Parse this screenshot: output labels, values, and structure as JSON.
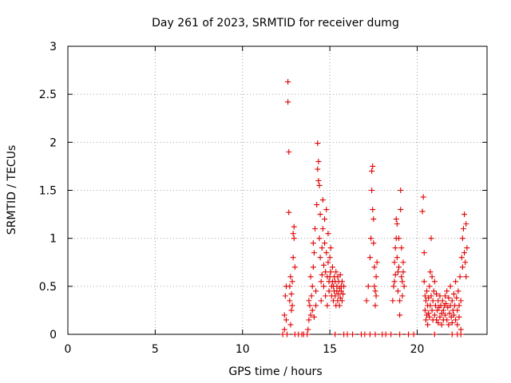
{
  "chart_data": {
    "type": "scatter",
    "title": "Day 261 of 2023, SRMTID for receiver dumg",
    "xlabel": "GPS time / hours",
    "ylabel": "SRMTID / TECUs",
    "xlim": [
      0,
      24
    ],
    "ylim": [
      0,
      3
    ],
    "xticks": [
      {
        "value": 0,
        "label": "0"
      },
      {
        "value": 5,
        "label": "5"
      },
      {
        "value": 10,
        "label": "10"
      },
      {
        "value": 15,
        "label": "15"
      },
      {
        "value": 20,
        "label": "20"
      }
    ],
    "yticks": [
      {
        "value": 0,
        "label": "0"
      },
      {
        "value": 0.5,
        "label": "0.5"
      },
      {
        "value": 1,
        "label": "1"
      },
      {
        "value": 1.5,
        "label": "1.5"
      },
      {
        "value": 2,
        "label": "2"
      },
      {
        "value": 2.5,
        "label": "2.5"
      },
      {
        "value": 3,
        "label": "3"
      }
    ],
    "grid": true,
    "marker": "+",
    "series": [
      {
        "name": "SRMTID",
        "color": "#e00000",
        "points": [
          [
            12.3,
            0.0
          ],
          [
            12.4,
            0.05
          ],
          [
            12.4,
            0.2
          ],
          [
            12.45,
            0.4
          ],
          [
            12.5,
            0.5
          ],
          [
            12.5,
            0.15
          ],
          [
            12.55,
            0.0
          ],
          [
            12.6,
            2.63
          ],
          [
            12.6,
            2.42
          ],
          [
            12.65,
            1.9
          ],
          [
            12.65,
            1.27
          ],
          [
            12.7,
            0.5
          ],
          [
            12.7,
            0.35
          ],
          [
            12.75,
            0.6
          ],
          [
            12.8,
            0.42
          ],
          [
            12.8,
            0.25
          ],
          [
            12.85,
            0.55
          ],
          [
            12.9,
            0.8
          ],
          [
            12.9,
            1.05
          ],
          [
            12.95,
            1.0
          ],
          [
            12.95,
            1.12
          ],
          [
            13.0,
            0.7
          ],
          [
            12.75,
            0.1
          ],
          [
            12.85,
            0.3
          ],
          [
            13.0,
            0.0
          ],
          [
            13.2,
            0.0
          ],
          [
            13.4,
            0.0
          ],
          [
            13.5,
            0.0
          ],
          [
            13.7,
            0.0
          ],
          [
            13.75,
            0.05
          ],
          [
            13.8,
            0.35
          ],
          [
            13.8,
            0.15
          ],
          [
            13.85,
            0.3
          ],
          [
            13.9,
            0.6
          ],
          [
            13.9,
            0.2
          ],
          [
            13.95,
            0.4
          ],
          [
            14.0,
            0.25
          ],
          [
            14.0,
            0.5
          ],
          [
            14.05,
            0.7
          ],
          [
            14.05,
            0.95
          ],
          [
            14.1,
            0.18
          ],
          [
            14.1,
            0.85
          ],
          [
            14.15,
            1.1
          ],
          [
            14.2,
            0.45
          ],
          [
            14.2,
            0.3
          ],
          [
            14.25,
            1.35
          ],
          [
            14.3,
            1.99
          ],
          [
            14.3,
            1.72
          ],
          [
            14.35,
            1.8
          ],
          [
            14.35,
            1.6
          ],
          [
            14.4,
            1.55
          ],
          [
            14.4,
            1.0
          ],
          [
            14.45,
            1.25
          ],
          [
            14.45,
            0.8
          ],
          [
            14.5,
            0.55
          ],
          [
            14.5,
            0.35
          ],
          [
            14.55,
            0.9
          ],
          [
            14.55,
            0.62
          ],
          [
            14.6,
            1.4
          ],
          [
            14.6,
            1.1
          ],
          [
            14.65,
            0.72
          ],
          [
            14.65,
            0.5
          ],
          [
            14.7,
            1.2
          ],
          [
            14.7,
            0.95
          ],
          [
            14.75,
            0.65
          ],
          [
            14.75,
            0.4
          ],
          [
            14.8,
            1.3
          ],
          [
            14.8,
            0.85
          ],
          [
            14.85,
            0.6
          ],
          [
            14.85,
            0.3
          ],
          [
            14.9,
            1.05
          ],
          [
            14.9,
            0.75
          ],
          [
            14.95,
            0.55
          ],
          [
            14.95,
            0.45
          ],
          [
            15.0,
            0.8
          ],
          [
            15.0,
            0.6
          ],
          [
            15.05,
            0.9
          ],
          [
            15.05,
            0.65
          ],
          [
            15.1,
            0.5
          ],
          [
            15.1,
            0.4
          ],
          [
            15.15,
            0.7
          ],
          [
            15.15,
            0.55
          ],
          [
            15.2,
            0.5
          ],
          [
            15.2,
            0.35
          ],
          [
            15.25,
            0.6
          ],
          [
            15.25,
            0.45
          ],
          [
            15.3,
            0.55
          ],
          [
            15.3,
            0.4
          ],
          [
            15.35,
            0.65
          ],
          [
            15.35,
            0.3
          ],
          [
            15.4,
            0.5
          ],
          [
            15.4,
            0.45
          ],
          [
            15.45,
            0.6
          ],
          [
            15.45,
            0.35
          ],
          [
            15.5,
            0.55
          ],
          [
            15.5,
            0.42
          ],
          [
            15.55,
            0.48
          ],
          [
            15.55,
            0.3
          ],
          [
            15.6,
            0.62
          ],
          [
            15.6,
            0.38
          ],
          [
            15.65,
            0.5
          ],
          [
            15.65,
            0.45
          ],
          [
            15.7,
            0.55
          ],
          [
            15.7,
            0.35
          ],
          [
            15.75,
            0.42
          ],
          [
            15.8,
            0.5
          ],
          [
            15.8,
            0.0
          ],
          [
            15.3,
            0.0
          ],
          [
            16.0,
            0.0
          ],
          [
            16.3,
            0.0
          ],
          [
            16.8,
            0.0
          ],
          [
            17.0,
            0.0
          ],
          [
            17.1,
            0.35
          ],
          [
            17.2,
            0.5
          ],
          [
            17.3,
            0.8
          ],
          [
            17.35,
            1.0
          ],
          [
            17.4,
            1.7
          ],
          [
            17.4,
            1.5
          ],
          [
            17.45,
            1.75
          ],
          [
            17.45,
            1.3
          ],
          [
            17.5,
            1.2
          ],
          [
            17.5,
            0.95
          ],
          [
            17.55,
            0.7
          ],
          [
            17.55,
            0.5
          ],
          [
            17.6,
            0.45
          ],
          [
            17.6,
            0.3
          ],
          [
            17.65,
            0.6
          ],
          [
            17.65,
            0.4
          ],
          [
            17.7,
            0.75
          ],
          [
            17.3,
            0.0
          ],
          [
            17.6,
            0.0
          ],
          [
            18.0,
            0.0
          ],
          [
            18.2,
            0.0
          ],
          [
            18.5,
            0.0
          ],
          [
            18.6,
            0.35
          ],
          [
            18.65,
            0.5
          ],
          [
            18.7,
            0.55
          ],
          [
            18.7,
            0.75
          ],
          [
            18.75,
            0.9
          ],
          [
            18.75,
            0.62
          ],
          [
            18.8,
            1.2
          ],
          [
            18.8,
            1.0
          ],
          [
            18.85,
            1.15
          ],
          [
            18.85,
            0.8
          ],
          [
            18.9,
            0.65
          ],
          [
            18.9,
            0.45
          ],
          [
            18.95,
            1.0
          ],
          [
            18.95,
            0.7
          ],
          [
            19.0,
            0.35
          ],
          [
            19.0,
            0.2
          ],
          [
            19.05,
            1.5
          ],
          [
            19.05,
            1.3
          ],
          [
            19.1,
            0.9
          ],
          [
            19.1,
            0.6
          ],
          [
            19.15,
            0.55
          ],
          [
            19.15,
            0.4
          ],
          [
            19.2,
            0.75
          ],
          [
            19.2,
            0.65
          ],
          [
            19.25,
            0.5
          ],
          [
            19.0,
            0.0
          ],
          [
            19.5,
            0.0
          ],
          [
            19.8,
            0.0
          ],
          [
            20.3,
            1.28
          ],
          [
            20.35,
            1.43
          ],
          [
            20.4,
            0.85
          ],
          [
            20.4,
            0.55
          ],
          [
            20.45,
            0.4
          ],
          [
            20.45,
            0.25
          ],
          [
            20.5,
            0.15
          ],
          [
            20.5,
            0.35
          ],
          [
            20.55,
            0.2
          ],
          [
            20.55,
            0.45
          ],
          [
            20.6,
            0.3
          ],
          [
            20.6,
            0.1
          ],
          [
            20.65,
            0.38
          ],
          [
            20.65,
            0.22
          ],
          [
            20.7,
            0.5
          ],
          [
            20.7,
            0.18
          ],
          [
            20.75,
            0.65
          ],
          [
            20.75,
            0.3
          ],
          [
            20.8,
            1.0
          ],
          [
            20.8,
            0.4
          ],
          [
            20.85,
            0.6
          ],
          [
            20.85,
            0.25
          ],
          [
            20.9,
            0.35
          ],
          [
            20.9,
            0.15
          ],
          [
            20.95,
            0.45
          ],
          [
            21.0,
            0.55
          ],
          [
            21.0,
            0.2
          ],
          [
            21.05,
            0.3
          ],
          [
            21.1,
            0.42
          ],
          [
            21.1,
            0.15
          ],
          [
            21.15,
            0.25
          ],
          [
            21.2,
            0.35
          ],
          [
            21.2,
            0.12
          ],
          [
            21.25,
            0.28
          ],
          [
            21.3,
            0.4
          ],
          [
            21.3,
            0.18
          ],
          [
            21.35,
            0.3
          ],
          [
            21.4,
            0.22
          ],
          [
            21.4,
            0.1
          ],
          [
            21.45,
            0.35
          ],
          [
            21.5,
            0.25
          ],
          [
            21.5,
            0.15
          ],
          [
            21.55,
            0.3
          ],
          [
            21.6,
            0.4
          ],
          [
            21.6,
            0.2
          ],
          [
            21.65,
            0.32
          ],
          [
            21.7,
            0.45
          ],
          [
            21.7,
            0.15
          ],
          [
            21.75,
            0.28
          ],
          [
            21.8,
            0.38
          ],
          [
            21.8,
            0.1
          ],
          [
            21.85,
            0.22
          ],
          [
            21.9,
            0.5
          ],
          [
            21.9,
            0.3
          ],
          [
            21.95,
            0.18
          ],
          [
            22.0,
            0.35
          ],
          [
            22.0,
            0.12
          ],
          [
            22.05,
            0.25
          ],
          [
            22.1,
            0.42
          ],
          [
            22.1,
            0.2
          ],
          [
            22.15,
            0.3
          ],
          [
            22.2,
            0.55
          ],
          [
            22.2,
            0.15
          ],
          [
            22.25,
            0.38
          ],
          [
            22.3,
            0.25
          ],
          [
            22.3,
            0.1
          ],
          [
            22.35,
            0.45
          ],
          [
            22.4,
            0.3
          ],
          [
            22.4,
            0.18
          ],
          [
            22.45,
            0.6
          ],
          [
            22.5,
            0.35
          ],
          [
            22.5,
            0.05
          ],
          [
            22.55,
            0.8
          ],
          [
            22.6,
            1.0
          ],
          [
            22.6,
            0.7
          ],
          [
            22.65,
            1.1
          ],
          [
            22.7,
            1.25
          ],
          [
            22.7,
            0.85
          ],
          [
            22.75,
            0.75
          ],
          [
            22.8,
            1.15
          ],
          [
            22.8,
            0.6
          ],
          [
            22.85,
            0.9
          ],
          [
            21.0,
            0.0
          ],
          [
            22.0,
            0.0
          ],
          [
            22.3,
            0.0
          ],
          [
            22.5,
            0.0
          ]
        ]
      }
    ]
  }
}
